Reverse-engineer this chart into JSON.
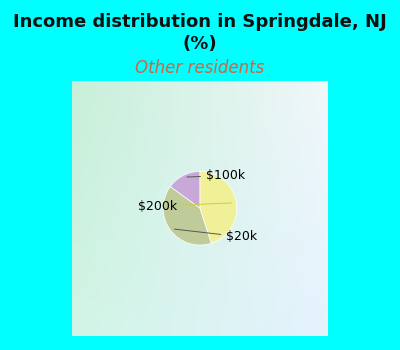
{
  "title": "Income distribution in Springdale, NJ\n(%)",
  "subtitle": "Other residents",
  "slices": [
    {
      "label": "$100k",
      "value": 15,
      "color": "#C8A8D8"
    },
    {
      "label": "$20k",
      "value": 40,
      "color": "#BFCC99"
    },
    {
      "label": "$200k",
      "value": 45,
      "color": "#F0F099"
    }
  ],
  "title_fontsize": 13,
  "subtitle_fontsize": 12,
  "subtitle_color": "#CC6644",
  "title_color": "#111111",
  "fig_bg_color": "#00FFFF",
  "chart_bg_color_tl": "#C8EED8",
  "chart_bg_color_tr": "#E8F8F0",
  "chart_bg_color_br": "#DDEEFF",
  "label_fontsize": 9,
  "startangle": 90,
  "fig_width": 4.0,
  "fig_height": 3.5,
  "dpi": 100
}
